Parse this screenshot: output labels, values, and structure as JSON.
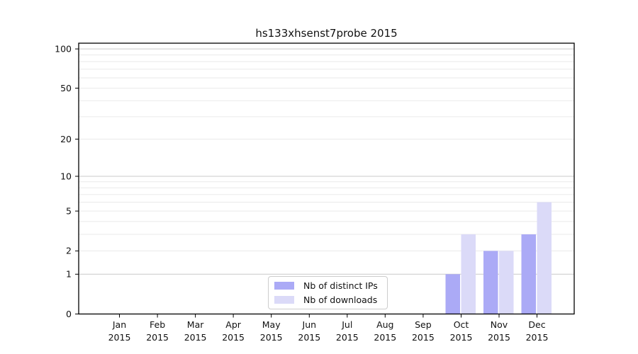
{
  "page": {
    "background": "#ffffff"
  },
  "chart_data": {
    "type": "bar",
    "title": "hs133xhsenst7probe 2015",
    "categories": [
      {
        "month": "Jan",
        "year": "2015"
      },
      {
        "month": "Feb",
        "year": "2015"
      },
      {
        "month": "Mar",
        "year": "2015"
      },
      {
        "month": "Apr",
        "year": "2015"
      },
      {
        "month": "May",
        "year": "2015"
      },
      {
        "month": "Jun",
        "year": "2015"
      },
      {
        "month": "Jul",
        "year": "2015"
      },
      {
        "month": "Aug",
        "year": "2015"
      },
      {
        "month": "Sep",
        "year": "2015"
      },
      {
        "month": "Oct",
        "year": "2015"
      },
      {
        "month": "Nov",
        "year": "2015"
      },
      {
        "month": "Dec",
        "year": "2015"
      }
    ],
    "series": [
      {
        "name": "Nb of distinct IPs",
        "color": "#abaaf6",
        "values": [
          0,
          0,
          0,
          0,
          0,
          0,
          0,
          0,
          0,
          1,
          2,
          3
        ]
      },
      {
        "name": "Nb of downloads",
        "color": "#dbdaf8",
        "values": [
          0,
          0,
          0,
          0,
          0,
          0,
          0,
          0,
          0,
          3,
          2,
          6
        ]
      }
    ],
    "y_axis": {
      "scale": "log1p",
      "ticks": [
        0,
        1,
        2,
        5,
        10,
        20,
        50,
        100
      ],
      "ylim": [
        0,
        110
      ],
      "major_gridlines": [
        1,
        10,
        100
      ],
      "minor_gridlines": [
        2,
        3,
        4,
        5,
        6,
        7,
        8,
        9,
        20,
        30,
        40,
        50,
        60,
        70,
        80,
        90
      ]
    },
    "xlabel": "",
    "ylabel": "",
    "grid": "horizontal",
    "legend_position": "bottom-center",
    "colors": {
      "grid_major": "#c9c9c9",
      "grid_minor": "#eaeaea",
      "axis": "#000000",
      "text": "#111111"
    }
  }
}
